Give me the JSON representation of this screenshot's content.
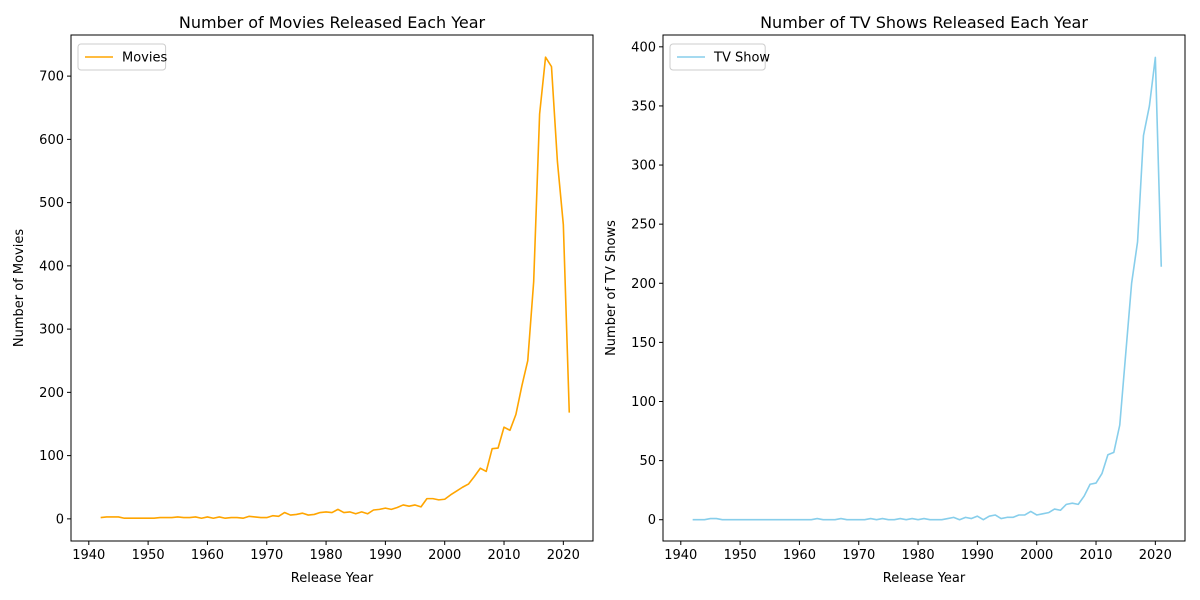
{
  "chart_data": [
    {
      "type": "line",
      "title": "Number of Movies Released Each Year",
      "xlabel": "Release Year",
      "ylabel": "Number of Movies",
      "xlim": [
        1937,
        2025
      ],
      "ylim": [
        -35,
        765
      ],
      "xticks": [
        1940,
        1950,
        1960,
        1970,
        1980,
        1990,
        2000,
        2010,
        2020
      ],
      "yticks": [
        0,
        100,
        200,
        300,
        400,
        500,
        600,
        700
      ],
      "legend_position": "upper-left",
      "color": "#ffa500",
      "series": [
        {
          "name": "Movies",
          "x": [
            1942,
            1943,
            1944,
            1945,
            1946,
            1947,
            1948,
            1949,
            1950,
            1951,
            1952,
            1953,
            1954,
            1955,
            1956,
            1957,
            1958,
            1959,
            1960,
            1961,
            1962,
            1963,
            1964,
            1965,
            1966,
            1967,
            1968,
            1969,
            1970,
            1971,
            1972,
            1973,
            1974,
            1975,
            1976,
            1977,
            1978,
            1979,
            1980,
            1981,
            1982,
            1983,
            1984,
            1985,
            1986,
            1987,
            1988,
            1989,
            1990,
            1991,
            1992,
            1993,
            1994,
            1995,
            1996,
            1997,
            1998,
            1999,
            2000,
            2001,
            2002,
            2003,
            2004,
            2005,
            2006,
            2007,
            2008,
            2009,
            2010,
            2011,
            2012,
            2013,
            2014,
            2015,
            2016,
            2017,
            2018,
            2019,
            2020,
            2021
          ],
          "values": [
            2,
            3,
            3,
            3,
            1,
            1,
            1,
            1,
            1,
            1,
            2,
            2,
            2,
            3,
            2,
            2,
            3,
            1,
            3,
            1,
            3,
            1,
            2,
            2,
            1,
            4,
            3,
            2,
            2,
            5,
            4,
            10,
            6,
            7,
            9,
            6,
            7,
            10,
            11,
            10,
            15,
            10,
            11,
            8,
            11,
            8,
            14,
            15,
            17,
            15,
            18,
            22,
            20,
            22,
            19,
            32,
            32,
            30,
            31,
            38,
            44,
            50,
            55,
            67,
            80,
            75,
            111,
            112,
            145,
            140,
            165,
            210,
            250,
            375,
            640,
            730,
            715,
            565,
            465,
            168
          ]
        }
      ]
    },
    {
      "type": "line",
      "title": "Number of TV Shows Released Each Year",
      "xlabel": "Release Year",
      "ylabel": "Number of TV Shows",
      "xlim": [
        1937,
        2025
      ],
      "ylim": [
        -18,
        410
      ],
      "xticks": [
        1940,
        1950,
        1960,
        1970,
        1980,
        1990,
        2000,
        2010,
        2020
      ],
      "yticks": [
        0,
        50,
        100,
        150,
        200,
        250,
        300,
        350,
        400
      ],
      "legend_position": "upper-left",
      "color": "#87ceeb",
      "series": [
        {
          "name": "TV Show",
          "x": [
            1942,
            1943,
            1944,
            1945,
            1946,
            1947,
            1948,
            1949,
            1950,
            1951,
            1952,
            1953,
            1954,
            1955,
            1956,
            1957,
            1958,
            1959,
            1960,
            1961,
            1962,
            1963,
            1964,
            1965,
            1966,
            1967,
            1968,
            1969,
            1970,
            1971,
            1972,
            1973,
            1974,
            1975,
            1976,
            1977,
            1978,
            1979,
            1980,
            1981,
            1982,
            1983,
            1984,
            1985,
            1986,
            1987,
            1988,
            1989,
            1990,
            1991,
            1992,
            1993,
            1994,
            1995,
            1996,
            1997,
            1998,
            1999,
            2000,
            2001,
            2002,
            2003,
            2004,
            2005,
            2006,
            2007,
            2008,
            2009,
            2010,
            2011,
            2012,
            2013,
            2014,
            2015,
            2016,
            2017,
            2018,
            2019,
            2020,
            2021
          ],
          "values": [
            0,
            0,
            0,
            1,
            1,
            0,
            0,
            0,
            0,
            0,
            0,
            0,
            0,
            0,
            0,
            0,
            0,
            0,
            0,
            0,
            0,
            1,
            0,
            0,
            0,
            1,
            0,
            0,
            0,
            0,
            1,
            0,
            1,
            0,
            0,
            1,
            0,
            1,
            0,
            1,
            0,
            0,
            0,
            1,
            2,
            0,
            2,
            1,
            3,
            0,
            3,
            4,
            1,
            2,
            2,
            4,
            4,
            7,
            4,
            5,
            6,
            9,
            8,
            13,
            14,
            13,
            20,
            30,
            31,
            39,
            55,
            57,
            80,
            140,
            200,
            235,
            325,
            350,
            391,
            214
          ]
        }
      ]
    }
  ]
}
